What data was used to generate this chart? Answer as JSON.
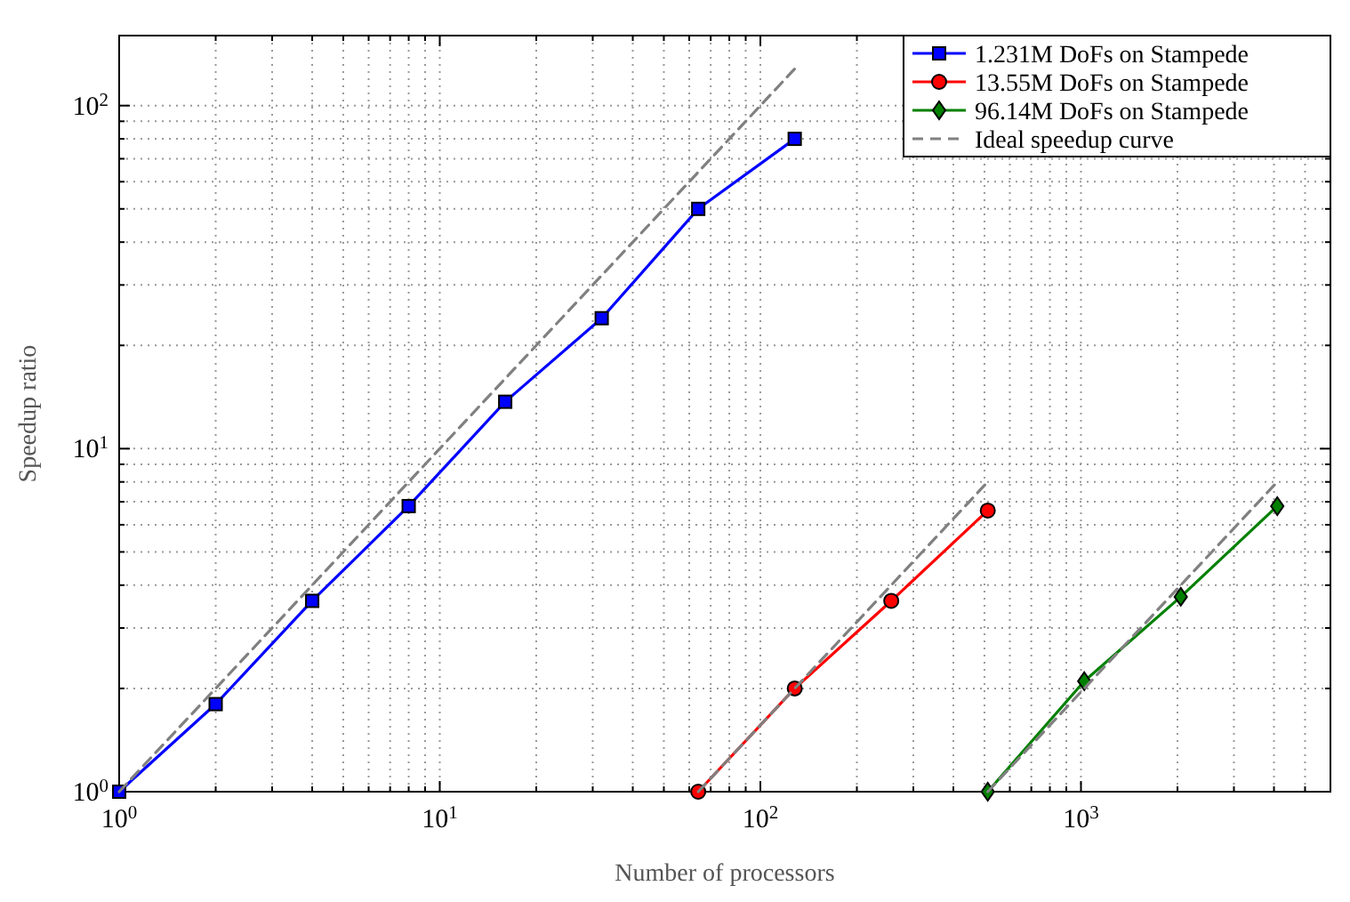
{
  "chart_data": {
    "type": "line",
    "xlabel": "Number of processors",
    "ylabel": "Speedup ratio",
    "log": "xy",
    "grid": true,
    "legend": "top right",
    "xlim": [
      1,
      6000
    ],
    "ylim": [
      1,
      160
    ],
    "xticks": [
      {
        "value": 1,
        "label": "10$^{0}$"
      },
      {
        "value": 2,
        "label": null
      },
      {
        "value": 3,
        "label": null
      },
      {
        "value": 4,
        "label": null
      },
      {
        "value": 5,
        "label": null
      },
      {
        "value": 6,
        "label": null
      },
      {
        "value": 7,
        "label": null
      },
      {
        "value": 8,
        "label": null
      },
      {
        "value": 9,
        "label": null
      },
      {
        "value": 10,
        "label": "10$^{1}$"
      },
      {
        "value": 20,
        "label": null
      },
      {
        "value": 30,
        "label": null
      },
      {
        "value": 40,
        "label": null
      },
      {
        "value": 50,
        "label": null
      },
      {
        "value": 60,
        "label": null
      },
      {
        "value": 70,
        "label": null
      },
      {
        "value": 80,
        "label": null
      },
      {
        "value": 90,
        "label": null
      },
      {
        "value": 100,
        "label": "10$^{2}$"
      },
      {
        "value": 200,
        "label": null
      },
      {
        "value": 300,
        "label": null
      },
      {
        "value": 400,
        "label": null
      },
      {
        "value": 500,
        "label": null
      },
      {
        "value": 600,
        "label": null
      },
      {
        "value": 700,
        "label": null
      },
      {
        "value": 800,
        "label": null
      },
      {
        "value": 900,
        "label": null
      },
      {
        "value": 1000,
        "label": "10$^{3}$"
      },
      {
        "value": 2000,
        "label": null
      },
      {
        "value": 3000,
        "label": null
      },
      {
        "value": 4000,
        "label": null
      },
      {
        "value": 5000,
        "label": null
      }
    ],
    "yticks": [
      {
        "value": 1,
        "label": "10$^{0}$"
      },
      {
        "value": 2,
        "label": null
      },
      {
        "value": 3,
        "label": null
      },
      {
        "value": 4,
        "label": null
      },
      {
        "value": 5,
        "label": null
      },
      {
        "value": 6,
        "label": null
      },
      {
        "value": 7,
        "label": null
      },
      {
        "value": 8,
        "label": null
      },
      {
        "value": 9,
        "label": null
      },
      {
        "value": 10,
        "label": "10$^{1}$"
      },
      {
        "value": 20,
        "label": null
      },
      {
        "value": 30,
        "label": null
      },
      {
        "value": 40,
        "label": null
      },
      {
        "value": 50,
        "label": null
      },
      {
        "value": 60,
        "label": null
      },
      {
        "value": 70,
        "label": null
      },
      {
        "value": 80,
        "label": null
      },
      {
        "value": 90,
        "label": null
      },
      {
        "value": 100,
        "label": "10$^{2}$"
      }
    ],
    "series": [
      {
        "name": "1.231M DoFs on Stampede",
        "color": "#0000ff",
        "marker": "square",
        "x": [
          1,
          2,
          4,
          8,
          16,
          32,
          64,
          128
        ],
        "values": [
          1,
          1.8,
          3.6,
          6.8,
          13.7,
          24,
          50,
          80
        ]
      },
      {
        "name": "13.55M DoFs on Stampede",
        "color": "#ff0000",
        "marker": "circle",
        "x": [
          64,
          128,
          256,
          512
        ],
        "values": [
          1,
          2.0,
          3.6,
          6.6
        ]
      },
      {
        "name": "96.14M DoFs on Stampede",
        "color": "#008000",
        "marker": "diamond",
        "x": [
          512,
          1024,
          2048,
          4096
        ],
        "values": [
          1,
          2.1,
          3.7,
          6.8
        ]
      },
      {
        "name": "Ideal speedup curve",
        "color": "#808080",
        "marker": "none",
        "line_style": "dashed",
        "x": [
          1,
          128
        ],
        "values": [
          1,
          128
        ]
      },
      {
        "color": "#808080",
        "marker": "none",
        "line_style": "dashed",
        "x": [
          64,
          512
        ],
        "values": [
          1,
          8
        ]
      },
      {
        "color": "#808080",
        "marker": "none",
        "line_style": "dashed",
        "x": [
          512,
          4096
        ],
        "values": [
          1,
          8
        ]
      }
    ]
  }
}
